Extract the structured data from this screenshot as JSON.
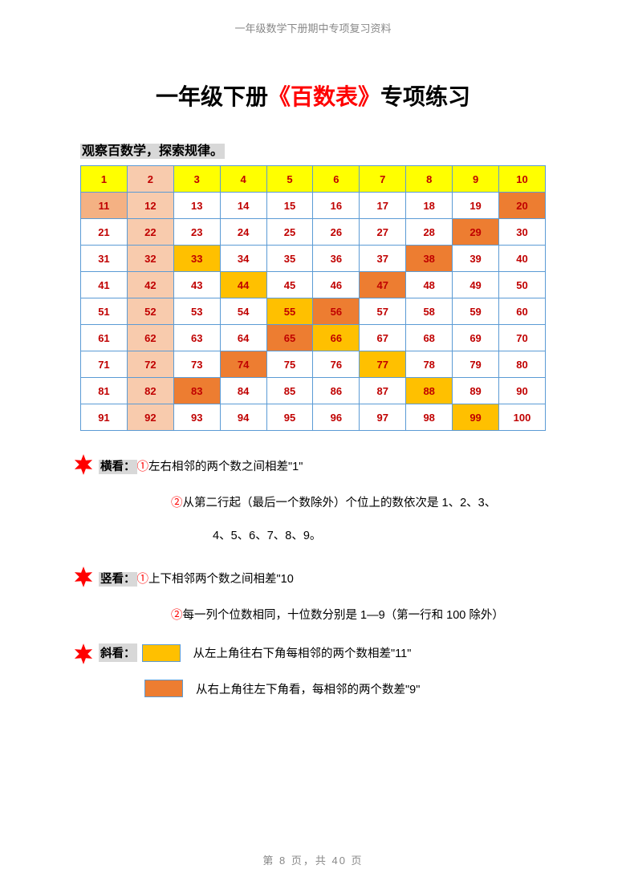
{
  "header": "一年级数学下册期中专项复习资料",
  "title": {
    "prefix": "一年级下册",
    "red": "《百数表》",
    "suffix": "专项练习"
  },
  "section_title": "观察百数学，探索规律。",
  "table": {
    "rows": [
      [
        {
          "v": "1",
          "c": "yellow-bg"
        },
        {
          "v": "2",
          "c": "yellow-bg peach-bg"
        },
        {
          "v": "3",
          "c": "yellow-bg"
        },
        {
          "v": "4",
          "c": "yellow-bg"
        },
        {
          "v": "5",
          "c": "yellow-bg"
        },
        {
          "v": "6",
          "c": "yellow-bg"
        },
        {
          "v": "7",
          "c": "yellow-bg"
        },
        {
          "v": "8",
          "c": "yellow-bg"
        },
        {
          "v": "9",
          "c": "yellow-bg"
        },
        {
          "v": "10",
          "c": "yellow-bg"
        }
      ],
      [
        {
          "v": "11",
          "c": "orange-bg"
        },
        {
          "v": "12",
          "c": "peach-bg"
        },
        {
          "v": "13",
          "c": ""
        },
        {
          "v": "14",
          "c": ""
        },
        {
          "v": "15",
          "c": ""
        },
        {
          "v": "16",
          "c": ""
        },
        {
          "v": "17",
          "c": ""
        },
        {
          "v": "18",
          "c": ""
        },
        {
          "v": "19",
          "c": ""
        },
        {
          "v": "20",
          "c": "darkorange-bg"
        }
      ],
      [
        {
          "v": "21",
          "c": ""
        },
        {
          "v": "22",
          "c": "peach-bg"
        },
        {
          "v": "23",
          "c": ""
        },
        {
          "v": "24",
          "c": ""
        },
        {
          "v": "25",
          "c": ""
        },
        {
          "v": "26",
          "c": ""
        },
        {
          "v": "27",
          "c": ""
        },
        {
          "v": "28",
          "c": ""
        },
        {
          "v": "29",
          "c": "darkorange-bg"
        },
        {
          "v": "30",
          "c": ""
        }
      ],
      [
        {
          "v": "31",
          "c": ""
        },
        {
          "v": "32",
          "c": "peach-bg"
        },
        {
          "v": "33",
          "c": "amber-bg"
        },
        {
          "v": "34",
          "c": ""
        },
        {
          "v": "35",
          "c": ""
        },
        {
          "v": "36",
          "c": ""
        },
        {
          "v": "37",
          "c": ""
        },
        {
          "v": "38",
          "c": "darkorange-bg"
        },
        {
          "v": "39",
          "c": ""
        },
        {
          "v": "40",
          "c": ""
        }
      ],
      [
        {
          "v": "41",
          "c": ""
        },
        {
          "v": "42",
          "c": "peach-bg"
        },
        {
          "v": "43",
          "c": ""
        },
        {
          "v": "44",
          "c": "amber-bg"
        },
        {
          "v": "45",
          "c": ""
        },
        {
          "v": "46",
          "c": ""
        },
        {
          "v": "47",
          "c": "darkorange-bg"
        },
        {
          "v": "48",
          "c": ""
        },
        {
          "v": "49",
          "c": ""
        },
        {
          "v": "50",
          "c": ""
        }
      ],
      [
        {
          "v": "51",
          "c": ""
        },
        {
          "v": "52",
          "c": "peach-bg"
        },
        {
          "v": "53",
          "c": ""
        },
        {
          "v": "54",
          "c": ""
        },
        {
          "v": "55",
          "c": "amber-bg"
        },
        {
          "v": "56",
          "c": "darkorange-bg"
        },
        {
          "v": "57",
          "c": ""
        },
        {
          "v": "58",
          "c": ""
        },
        {
          "v": "59",
          "c": ""
        },
        {
          "v": "60",
          "c": ""
        }
      ],
      [
        {
          "v": "61",
          "c": ""
        },
        {
          "v": "62",
          "c": "peach-bg"
        },
        {
          "v": "63",
          "c": ""
        },
        {
          "v": "64",
          "c": ""
        },
        {
          "v": "65",
          "c": "darkorange-bg"
        },
        {
          "v": "66",
          "c": "amber-bg"
        },
        {
          "v": "67",
          "c": ""
        },
        {
          "v": "68",
          "c": ""
        },
        {
          "v": "69",
          "c": ""
        },
        {
          "v": "70",
          "c": ""
        }
      ],
      [
        {
          "v": "71",
          "c": ""
        },
        {
          "v": "72",
          "c": "peach-bg"
        },
        {
          "v": "73",
          "c": ""
        },
        {
          "v": "74",
          "c": "darkorange-bg"
        },
        {
          "v": "75",
          "c": ""
        },
        {
          "v": "76",
          "c": ""
        },
        {
          "v": "77",
          "c": "amber-bg"
        },
        {
          "v": "78",
          "c": ""
        },
        {
          "v": "79",
          "c": ""
        },
        {
          "v": "80",
          "c": ""
        }
      ],
      [
        {
          "v": "81",
          "c": ""
        },
        {
          "v": "82",
          "c": "peach-bg"
        },
        {
          "v": "83",
          "c": "darkorange-bg"
        },
        {
          "v": "84",
          "c": ""
        },
        {
          "v": "85",
          "c": ""
        },
        {
          "v": "86",
          "c": ""
        },
        {
          "v": "87",
          "c": ""
        },
        {
          "v": "88",
          "c": "amber-bg"
        },
        {
          "v": "89",
          "c": ""
        },
        {
          "v": "90",
          "c": ""
        }
      ],
      [
        {
          "v": "91",
          "c": ""
        },
        {
          "v": "92",
          "c": "peach-bg"
        },
        {
          "v": "93",
          "c": ""
        },
        {
          "v": "94",
          "c": ""
        },
        {
          "v": "95",
          "c": ""
        },
        {
          "v": "96",
          "c": ""
        },
        {
          "v": "97",
          "c": ""
        },
        {
          "v": "98",
          "c": ""
        },
        {
          "v": "99",
          "c": "amber-bg"
        },
        {
          "v": "100",
          "c": ""
        }
      ]
    ],
    "border_color": "#5b9bd5",
    "text_color": "#c00000"
  },
  "notes": {
    "heng_label": "横看：",
    "heng_1_circ": "①",
    "heng_1": "左右相邻的两个数之间相差\"1\"",
    "heng_2_circ": "②",
    "heng_2": "从第二行起（最后一个数除外）个位上的数依次是 1、2、3、",
    "heng_2b": "4、5、6、7、8、9。",
    "shu_label": "竖看：",
    "shu_1_circ": "①",
    "shu_1": "上下相邻两个数之间相差\"10",
    "shu_2_circ": "②",
    "shu_2": "每一列个位数相同，十位数分别是 1—9（第一行和 100 除外）",
    "xie_label": "斜看：",
    "xie_1": "从左上角往右下角每相邻的两个数相差\"11\"",
    "xie_2": "从右上角往左下角看，每相邻的两个数差\"9\""
  },
  "footer": "第 8 页，共 40 页",
  "colors": {
    "yellow": "#ffff00",
    "peach": "#f8cbad",
    "orange": "#f4b183",
    "darkorange": "#ed7d31",
    "amber": "#ffc000",
    "red": "#ff0000",
    "star": "#ff0000"
  }
}
